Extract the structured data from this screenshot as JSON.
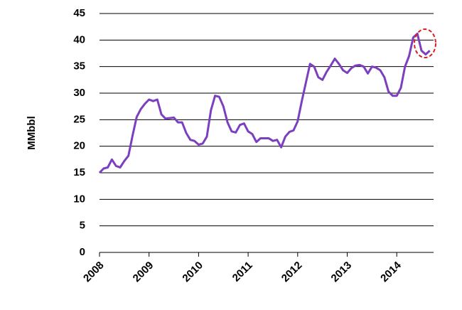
{
  "chart_data": {
    "type": "line",
    "y_label": "MMbbl",
    "categories": [
      "2008",
      null,
      null,
      null,
      null,
      null,
      null,
      null,
      null,
      null,
      null,
      null,
      "2009",
      null,
      null,
      null,
      null,
      null,
      null,
      null,
      null,
      null,
      null,
      null,
      "2010",
      null,
      null,
      null,
      null,
      null,
      null,
      null,
      null,
      null,
      null,
      null,
      "2011",
      null,
      null,
      null,
      null,
      null,
      null,
      null,
      null,
      null,
      null,
      null,
      "2012",
      null,
      null,
      null,
      null,
      null,
      null,
      null,
      null,
      null,
      null,
      null,
      "2013",
      null,
      null,
      null,
      null,
      null,
      null,
      null,
      null,
      null,
      null,
      null,
      "2014",
      null,
      null,
      null,
      null,
      null,
      null,
      null,
      null
    ],
    "series": [
      {
        "color": "#7b3fbf",
        "values": [
          15,
          15.8,
          16,
          17.5,
          16.3,
          16,
          17.2,
          18.2,
          22,
          25.5,
          27,
          28,
          28.8,
          28.5,
          28.8,
          26,
          25.2,
          25.3,
          25.4,
          24.5,
          24.5,
          22.5,
          21.2,
          21,
          20.3,
          20.5,
          21.8,
          26.8,
          29.5,
          29.3,
          27.5,
          24.5,
          22.8,
          22.6,
          24,
          24.3,
          22.8,
          22.3,
          20.8,
          21.5,
          21.5,
          21.5,
          21,
          21.2,
          19.8,
          21.8,
          22.7,
          23,
          24.7,
          28.5,
          32,
          35.5,
          35,
          33,
          32.5,
          34,
          35.2,
          36.5,
          35.5,
          34.3,
          33.8,
          34.7,
          35.2,
          35.3,
          35,
          33.7,
          35,
          34.8,
          34.3,
          33,
          30.3,
          29.5,
          29.5,
          31,
          35,
          37,
          40.5,
          41.2,
          38,
          37.3,
          38
        ]
      }
    ],
    "ylim": [
      0,
      45
    ],
    "yticks": [
      0,
      5,
      10,
      15,
      20,
      25,
      30,
      35,
      40,
      45
    ],
    "grid": true
  }
}
